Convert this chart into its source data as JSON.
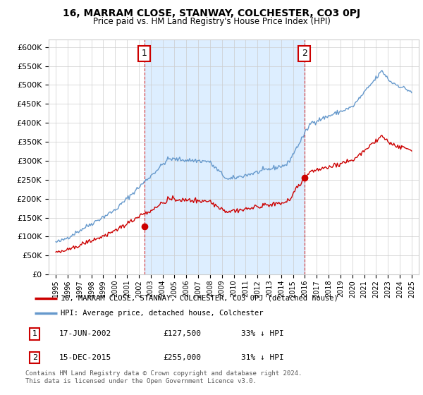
{
  "title": "16, MARRAM CLOSE, STANWAY, COLCHESTER, CO3 0PJ",
  "subtitle": "Price paid vs. HM Land Registry's House Price Index (HPI)",
  "ylabel_ticks": [
    "£0",
    "£50K",
    "£100K",
    "£150K",
    "£200K",
    "£250K",
    "£300K",
    "£350K",
    "£400K",
    "£450K",
    "£500K",
    "£550K",
    "£600K"
  ],
  "ylim": [
    0,
    620000
  ],
  "yticks": [
    0,
    50000,
    100000,
    150000,
    200000,
    250000,
    300000,
    350000,
    400000,
    450000,
    500000,
    550000,
    600000
  ],
  "x_start_year": 1995,
  "x_end_year": 2025,
  "xlim": [
    1994.4,
    2025.6
  ],
  "sale1_date": 2002.46,
  "sale1_price": 127500,
  "sale1_label": "1",
  "sale1_date_str": "17-JUN-2002",
  "sale1_pct": "33% ↓ HPI",
  "sale2_date": 2015.96,
  "sale2_price": 255000,
  "sale2_label": "2",
  "sale2_date_str": "15-DEC-2015",
  "sale2_pct": "31% ↓ HPI",
  "legend_property": "16, MARRAM CLOSE, STANWAY, COLCHESTER, CO3 0PJ (detached house)",
  "legend_hpi": "HPI: Average price, detached house, Colchester",
  "footer": "Contains HM Land Registry data © Crown copyright and database right 2024.\nThis data is licensed under the Open Government Licence v3.0.",
  "line_color_property": "#cc0000",
  "line_color_hpi": "#6699cc",
  "fill_color": "#ddeeff",
  "marker_color": "#cc0000",
  "grid_color": "#cccccc",
  "background_color": "#ffffff",
  "box_color": "#cc0000"
}
